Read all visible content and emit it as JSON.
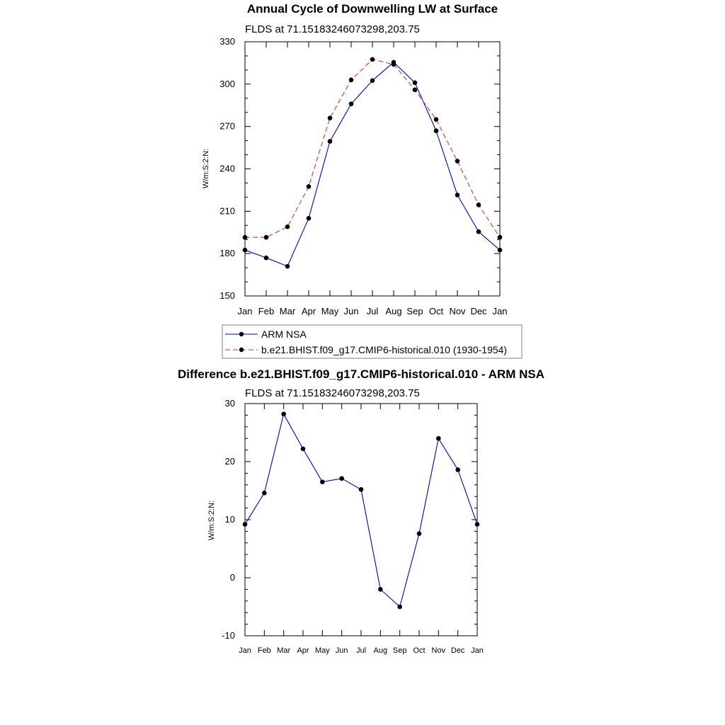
{
  "colors": {
    "obs": "#0000cc",
    "model": "#e03030",
    "diff": "#0000cc",
    "marker": "#000000"
  },
  "chart_data": [
    {
      "type": "line",
      "title": "Annual Cycle of Downwelling LW at Surface",
      "subtitle": "FLDS at 71.15183246073298,203.75",
      "ylabel": "W/m:S:2:N:",
      "xlabel": "",
      "categories": [
        "Jan",
        "Feb",
        "Mar",
        "Apr",
        "May",
        "Jun",
        "Jul",
        "Aug",
        "Sep",
        "Oct",
        "Nov",
        "Dec",
        "Jan"
      ],
      "ylim": [
        150,
        330
      ],
      "yticks": [
        150,
        180,
        210,
        240,
        270,
        300,
        330
      ],
      "ytick_labels": [
        "150",
        "180",
        "210",
        "240",
        "270",
        "300",
        "330"
      ],
      "legend_position": "below",
      "series": [
        {
          "name": "ARM NSA",
          "style": "solid",
          "values": [
            182.5,
            177,
            171,
            205,
            259.5,
            286,
            302.5,
            315.5,
            301,
            267,
            221.5,
            195.5,
            182.5
          ]
        },
        {
          "name": "b.e21.BHIST.f09_g17.CMIP6-historical.010 (1930-1954)",
          "style": "dashed",
          "values": [
            191.5,
            191.5,
            199,
            227.5,
            276,
            303,
            317.5,
            314,
            296,
            275,
            245.5,
            214.5,
            191.5
          ]
        }
      ]
    },
    {
      "type": "line",
      "title": "Difference b.e21.BHIST.f09_g17.CMIP6-historical.010 - ARM NSA",
      "subtitle": "FLDS at 71.15183246073298,203.75",
      "ylabel": "W/m:S:2:N:",
      "xlabel": "",
      "categories": [
        "Jan",
        "Feb",
        "Mar",
        "Apr",
        "May",
        "Jun",
        "Jul",
        "Aug",
        "Sep",
        "Oct",
        "Nov",
        "Dec",
        "Jan"
      ],
      "ylim": [
        -10,
        30
      ],
      "yticks": [
        -10,
        0,
        10,
        20,
        30
      ],
      "ytick_labels": [
        "-10",
        "0",
        "10",
        "20",
        "30"
      ],
      "series": [
        {
          "values": [
            9.2,
            14.6,
            28.2,
            22.2,
            16.5,
            17.1,
            15.2,
            -2,
            -5,
            7.6,
            24,
            18.6,
            9.2
          ]
        }
      ]
    }
  ]
}
